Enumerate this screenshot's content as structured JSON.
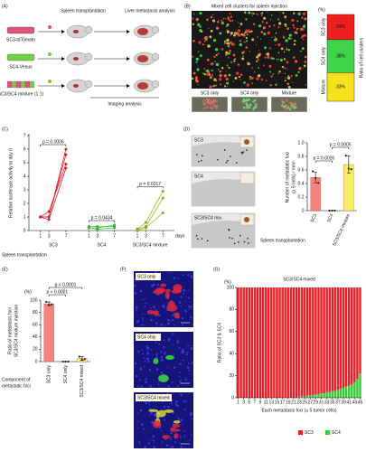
{
  "panel_a": {
    "label": "(A)",
    "spleen": "Spleen transplantation",
    "liver": "Liver metastasis analysis",
    "groups": [
      "SC3-tdTomato",
      "SC4-Venus",
      "SC3/SC4 mixture (1:1)"
    ],
    "imaging": "Imaging analysis"
  },
  "panel_b": {
    "label": "(B)",
    "title": "Mixed cell clusters for spleen injection",
    "insets": [
      "SC3 only",
      "SC4 only",
      "Mixture"
    ]
  },
  "panel_d": {
    "label": "(D)",
    "images": [
      "SC3",
      "SC4",
      "SC3/SC4 mix."
    ]
  },
  "panel_f": {
    "label": "(F)",
    "images": [
      "SC3 only",
      "SC4 only",
      "SC3/SC4 mixed"
    ]
  },
  "chart_data": [
    {
      "type": "stacked-bar",
      "unit_label": "(%)",
      "y_label": "Ratio of cell clusters",
      "ylim": [
        0,
        100
      ],
      "series": [
        {
          "name": "Mixture",
          "color": "#f5e21c",
          "values": [
            33
          ],
          "value_labels": [
            "33%"
          ]
        },
        {
          "name": "SC4 only",
          "color": "#3fd34a",
          "values": [
            38
          ],
          "value_labels": [
            "38%"
          ]
        },
        {
          "name": "SC3 only",
          "color": "#ee1f1f",
          "values": [
            29
          ],
          "value_labels": [
            "29%"
          ]
        }
      ]
    },
    {
      "type": "grouped-line",
      "panel": "(C)",
      "y_label": "Relative luciferase activity to day 0",
      "x_label": "days",
      "group_label": "Spleen transplantation",
      "x": [
        1,
        3,
        7
      ],
      "xlim": [
        0,
        8
      ],
      "xticks": [
        1,
        3,
        7
      ],
      "ylim": [
        0,
        7
      ],
      "yticks": [
        0,
        1,
        2,
        3,
        4,
        5,
        6,
        7
      ],
      "groups": [
        {
          "name": "SC3",
          "color": "#e8202a",
          "p_value": "p = 0.0006",
          "series": [
            {
              "values": [
                1.0,
                1.0,
                6.0
              ]
            },
            {
              "values": [
                1.0,
                1.0,
                5.6
              ]
            },
            {
              "values": [
                1.0,
                1.4,
                4.9
              ]
            },
            {
              "values": [
                1.0,
                0.8,
                4.6
              ]
            }
          ]
        },
        {
          "name": "SC4",
          "color": "#3ccf3c",
          "p_value": "p = 0.0434",
          "series": [
            {
              "values": [
                0.3,
                0.3,
                0.3
              ]
            },
            {
              "values": [
                0.2,
                0.2,
                0.4
              ]
            },
            {
              "values": [
                0.2,
                0.1,
                0.2
              ]
            }
          ]
        },
        {
          "name": "SC3/SC4 mixture",
          "color": "#a9b81c",
          "p_value": "p = 0.0317",
          "series": [
            {
              "values": [
                0.1,
                0.3,
                2.4
              ]
            },
            {
              "values": [
                0.1,
                0.6,
                2.9
              ]
            },
            {
              "values": [
                0.0,
                0.2,
                1.3
              ]
            }
          ]
        }
      ]
    },
    {
      "type": "bar",
      "y_label": [
        "Number of metastatic foci",
        "(≥ 5 cells) / mm²"
      ],
      "group_label": "Spleen transplantation",
      "categories": [
        "SC3",
        "SC4",
        "SC3/SC4 mixture"
      ],
      "values": [
        0.49,
        0,
        0.68
      ],
      "errors": [
        0.08,
        0,
        0.13
      ],
      "points": [
        [
          0.58,
          0.48,
          0.41
        ],
        [
          0,
          0,
          0
        ],
        [
          0.81,
          0.62,
          0.61
        ]
      ],
      "colors": [
        "#f3847c",
        "#f3847c",
        "#f7ef6a"
      ],
      "ylim": [
        0,
        1
      ],
      "yticks": [
        0,
        0.2,
        0.4,
        0.6,
        0.8,
        {
          "value": 1,
          "label": "1.0"
        }
      ],
      "p_values": [
        "p = 0.0026",
        "p = 0.0005"
      ]
    },
    {
      "type": "bar",
      "panel": "(E)",
      "unit_label": "(%)",
      "y_label": [
        "Ratio of metastasis foci",
        "SC3/SC4 mixture injection"
      ],
      "x_label": [
        "Component of",
        "metastatic foci"
      ],
      "categories": [
        "SC3 only",
        "SC4 only",
        "SC3/SC4 mixed"
      ],
      "values": [
        94,
        0,
        5
      ],
      "errors": [
        3,
        0,
        3
      ],
      "points": [
        [
          97,
          92,
          93
        ],
        [
          0,
          0,
          0
        ],
        [
          8,
          3,
          4
        ]
      ],
      "colors": [
        "#f3847c",
        "#f3847c",
        "#f7ef6a"
      ],
      "ylim": [
        0,
        100
      ],
      "yticks": [
        0,
        20,
        40,
        60,
        80,
        100
      ],
      "p_values": [
        "p < 0.0001",
        "p < 0.0001"
      ]
    },
    {
      "type": "stacked-bar",
      "panel": "(G)",
      "title": "SC3/SC4 mixed",
      "unit_label": "(%)",
      "y_label": "Ratio of SC3 & SC4",
      "x_label": "Each metastasis foci (≥ 5 tumor cells)",
      "x": [
        1,
        2,
        3,
        4,
        5,
        6,
        7,
        8,
        9,
        10,
        11,
        12,
        13,
        14,
        15,
        16,
        17,
        18,
        19,
        20,
        21,
        22,
        23,
        24,
        25,
        26,
        27,
        28,
        29,
        30,
        31,
        32,
        33,
        34,
        35,
        36,
        37,
        38,
        39,
        40,
        41,
        42,
        43,
        44,
        45
      ],
      "xlim": [
        0.5,
        45.5
      ],
      "xticks": [
        1,
        3,
        5,
        7,
        9,
        11,
        13,
        15,
        17,
        19,
        21,
        23,
        25,
        27,
        29,
        31,
        33,
        35,
        37,
        39,
        41,
        43,
        45
      ],
      "ylim": [
        0,
        100
      ],
      "yticks": [
        0,
        20,
        40,
        60,
        80,
        100
      ],
      "legend": "bottom",
      "series": [
        {
          "name": "SC3",
          "color": "#e8202a",
          "values": [
            100,
            100,
            100,
            100,
            100,
            100,
            100,
            100,
            100,
            100,
            100,
            100,
            100,
            100,
            100,
            100,
            100,
            100,
            100,
            100,
            100,
            100,
            99,
            99,
            99,
            98,
            98,
            98,
            97,
            97,
            96,
            96,
            95,
            95,
            94,
            94,
            93,
            92,
            91,
            90,
            89,
            88,
            86,
            83,
            78
          ]
        },
        {
          "name": "SC4",
          "color": "#36cc36",
          "values": [
            0,
            0,
            0,
            0,
            0,
            0,
            0,
            0,
            0,
            0,
            0,
            0,
            0,
            0,
            0,
            0,
            0,
            0,
            0,
            0,
            0,
            0,
            1,
            1,
            1,
            2,
            2,
            2,
            3,
            3,
            4,
            4,
            5,
            5,
            6,
            6,
            7,
            8,
            9,
            10,
            11,
            12,
            14,
            17,
            22
          ]
        }
      ]
    }
  ]
}
